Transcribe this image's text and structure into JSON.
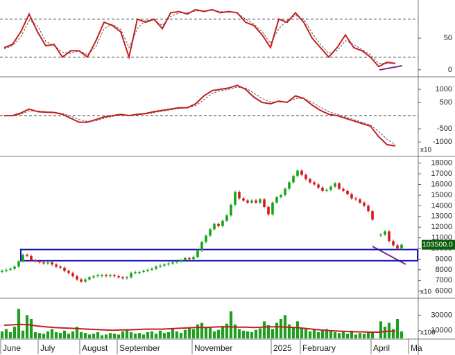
{
  "chart_data": [
    {
      "type": "line",
      "ylim": [
        -10,
        108
      ],
      "yticks": [
        0,
        50
      ],
      "levels": [
        20,
        80
      ],
      "series": [
        {
          "color": "#c41e1e",
          "values": [
            35,
            40,
            60,
            88,
            60,
            38,
            40,
            20,
            30,
            30,
            20,
            45,
            75,
            70,
            60,
            20,
            80,
            75,
            80,
            65,
            90,
            92,
            88,
            95,
            92,
            95,
            90,
            92,
            90,
            75,
            70,
            55,
            35,
            80,
            75,
            90,
            75,
            50,
            35,
            20,
            35,
            55,
            35,
            30,
            20,
            5,
            12,
            10,
            null,
            null
          ]
        },
        {
          "color": "#555555",
          "dash": true,
          "values": [
            33,
            38,
            52,
            78,
            70,
            45,
            38,
            28,
            26,
            30,
            24,
            36,
            65,
            72,
            64,
            35,
            65,
            78,
            78,
            70,
            84,
            90,
            90,
            93,
            93,
            94,
            92,
            91,
            90,
            80,
            72,
            60,
            42,
            65,
            78,
            86,
            80,
            58,
            40,
            26,
            30,
            46,
            40,
            32,
            24,
            10,
            10,
            11,
            null,
            null
          ]
        }
      ]
    },
    {
      "type": "line",
      "ylim": [
        -1520,
        1420
      ],
      "yticks": [
        -1000,
        -500,
        500,
        1000
      ],
      "levels": [
        0
      ],
      "unit_label": "x10",
      "series": [
        {
          "color": "#c41e1e",
          "values": [
            0,
            0,
            100,
            250,
            150,
            130,
            120,
            50,
            -100,
            -250,
            -250,
            -150,
            -50,
            0,
            50,
            0,
            50,
            80,
            150,
            200,
            250,
            300,
            300,
            450,
            750,
            950,
            1000,
            1050,
            1150,
            1000,
            700,
            500,
            450,
            550,
            500,
            750,
            650,
            400,
            200,
            50,
            0,
            -100,
            -200,
            -300,
            -400,
            -800,
            -1100,
            -1150,
            null,
            null
          ]
        },
        {
          "color": "#555555",
          "dash": true,
          "values": [
            0,
            0,
            50,
            180,
            180,
            150,
            130,
            80,
            -20,
            -150,
            -220,
            -200,
            -100,
            -30,
            20,
            20,
            30,
            60,
            110,
            170,
            220,
            270,
            300,
            380,
            600,
            850,
            950,
            1000,
            1080,
            1050,
            850,
            650,
            520,
            520,
            510,
            650,
            650,
            500,
            320,
            150,
            50,
            -50,
            -150,
            -250,
            -350,
            -600,
            -900,
            -1100,
            null,
            null
          ]
        }
      ]
    },
    {
      "type": "candlestick",
      "ylim": [
        5400,
        18500
      ],
      "yticks": [
        6000,
        7000,
        8000,
        9000,
        10000,
        11000,
        12000,
        13000,
        14000,
        15000,
        16000,
        17000,
        18000
      ],
      "up_color": "#13a613",
      "down_color": "#d41818",
      "unit_label": "x10",
      "last_label": "103500.0",
      "zone": [
        8850,
        9900
      ],
      "zone_color": "#1515b0",
      "values": [
        7900,
        8000,
        8100,
        8300,
        8800,
        9400,
        9300,
        8900,
        8800,
        8700,
        8600,
        8700,
        8500,
        8300,
        8200,
        7900,
        7700,
        7400,
        7100,
        6900,
        7100,
        7300,
        7400,
        7500,
        7500,
        7400,
        7500,
        7400,
        7300,
        7200,
        7300,
        7700,
        7800,
        7800,
        7900,
        8000,
        8100,
        8300,
        8400,
        8500,
        8600,
        8700,
        8800,
        8900,
        9100,
        9000,
        9200,
        9800,
        10600,
        11200,
        11800,
        12300,
        12100,
        12600,
        13100,
        14100,
        15300,
        14700,
        14500,
        14300,
        14500,
        14300,
        14600,
        13900,
        13200,
        14300,
        14800,
        15000,
        15600,
        16200,
        16800,
        17300,
        16900,
        16500,
        16200,
        16000,
        15700,
        15400,
        15500,
        15800,
        16100,
        15600,
        15400,
        15100,
        14700,
        14600,
        14300,
        14000,
        13500,
        12700,
        null,
        11300,
        11600,
        10700,
        10300,
        10000,
        10350,
        null,
        null,
        null
      ]
    },
    {
      "type": "bar",
      "ylim": [
        0,
        50000
      ],
      "yticks": [
        10000,
        30000
      ],
      "unit_label": "x100",
      "color": "#1f9e1f",
      "ma_color": "#c41e1e",
      "categories": [
        "June",
        null,
        null,
        null,
        null,
        null,
        null,
        null,
        null,
        "July",
        null,
        null,
        null,
        null,
        null,
        null,
        null,
        null,
        null,
        "August",
        null,
        null,
        null,
        null,
        null,
        null,
        null,
        null,
        "September",
        null,
        null,
        null,
        null,
        null,
        null,
        null,
        null,
        null,
        null,
        null,
        null,
        null,
        null,
        null,
        null,
        null,
        "November",
        null,
        null,
        null,
        null,
        null,
        null,
        null,
        null,
        null,
        null,
        null,
        null,
        null,
        null,
        null,
        null,
        null,
        null,
        "2025",
        null,
        null,
        null,
        null,
        null,
        null,
        "February",
        null,
        null,
        null,
        null,
        null,
        null,
        null,
        null,
        null,
        null,
        null,
        null,
        null,
        null,
        null,
        null,
        "April",
        null,
        null,
        null,
        null,
        null,
        null,
        null,
        null,
        "Ma",
        null
      ],
      "values": [
        9000,
        12000,
        8000,
        15000,
        38000,
        10000,
        30000,
        25000,
        8000,
        7000,
        6000,
        9000,
        12000,
        8000,
        7000,
        10000,
        6000,
        9000,
        15000,
        8000,
        7000,
        5000,
        6000,
        8000,
        4000,
        5000,
        7000,
        6000,
        5000,
        9000,
        12000,
        8000,
        6000,
        7000,
        5000,
        8000,
        9000,
        6000,
        10000,
        7000,
        8000,
        12000,
        9000,
        7000,
        11000,
        13000,
        12000,
        18000,
        20000,
        15000,
        14000,
        9000,
        11000,
        16000,
        19000,
        35000,
        18000,
        12000,
        10000,
        9000,
        8000,
        11000,
        13000,
        22000,
        17000,
        12000,
        20000,
        25000,
        30000,
        18000,
        15000,
        22000,
        13000,
        12000,
        9000,
        11000,
        8000,
        10000,
        12000,
        9000,
        8000,
        7000,
        9000,
        6000,
        10000,
        5000,
        7000,
        6000,
        8000,
        9000,
        null,
        22000,
        15000,
        20000,
        12000,
        25000,
        9000,
        null,
        null,
        null
      ],
      "ma": [
        17000,
        17500,
        18000,
        17500,
        16000,
        15000,
        14000,
        13500,
        13000,
        12500,
        12000,
        11500,
        11000,
        10500,
        11000,
        11000,
        11500,
        12000,
        12000,
        12000,
        12500,
        13000,
        13500,
        14000,
        14000,
        14500,
        15000,
        15000,
        14500,
        14500,
        14000,
        14500,
        15000,
        15000,
        14500,
        14000,
        13000,
        12000,
        11000,
        10000,
        9500,
        9000,
        8500,
        8500,
        8000,
        8000,
        9000,
        9500,
        null,
        null
      ]
    }
  ]
}
